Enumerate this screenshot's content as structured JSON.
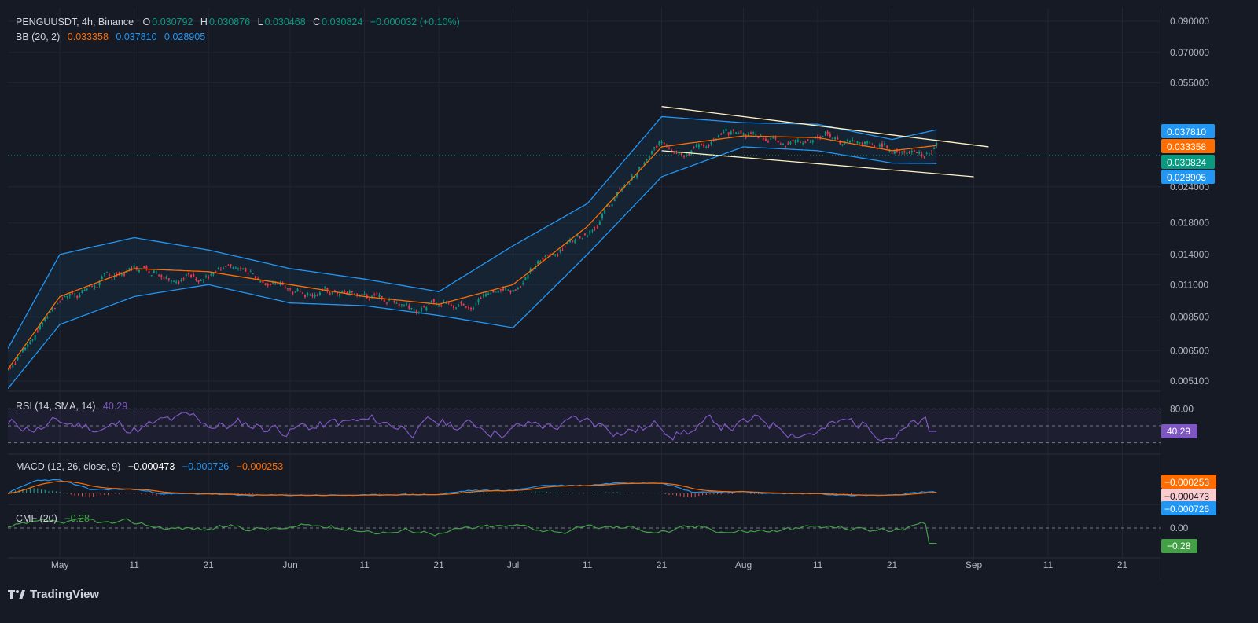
{
  "header": {
    "symbol_line": "PENGUUSDT, 4h, Binance",
    "o_label": "O",
    "o_value": "0.030792",
    "h_label": "H",
    "h_value": "0.030876",
    "l_label": "L",
    "l_value": "0.030468",
    "c_label": "C",
    "c_value": "0.030824",
    "change": "+0.000032 (+0.10%)"
  },
  "bb_legend": {
    "label": "BB (20, 2)",
    "basis": "0.033358",
    "upper": "0.037810",
    "lower": "0.028905"
  },
  "rsi_legend": {
    "label": "RSI (14, SMA, 14)",
    "value": "40.29"
  },
  "macd_legend": {
    "label": "MACD (12, 26, close, 9)",
    "hist": "−0.000473",
    "macd": "−0.000726",
    "signal": "−0.000253"
  },
  "cmf_legend": {
    "label": "CMF (20)",
    "value": "−0.28"
  },
  "price_axis_ticks": [
    "0.090000",
    "0.070000",
    "0.055000",
    "0.024000",
    "0.018000",
    "0.014000",
    "0.011000",
    "0.008500",
    "0.006500",
    "0.005100"
  ],
  "price_tags": [
    {
      "text": "0.037810",
      "color": "#2196f3"
    },
    {
      "text": "0.033358",
      "color": "#ff6d00"
    },
    {
      "text": "0.030824",
      "color": "#089981"
    },
    {
      "text": "0.028905",
      "color": "#2196f3"
    }
  ],
  "rsi_axis": {
    "tick": "80.00",
    "tag": "40.29"
  },
  "macd_axis": {
    "tag1": "−0.000253",
    "tag2": "−0.000473",
    "tag3": "−0.000726"
  },
  "cmf_axis": {
    "tick": "0.00",
    "tag": "−0.28"
  },
  "x_ticks": [
    "May",
    "11",
    "21",
    "Jun",
    "11",
    "21",
    "Jul",
    "11",
    "21",
    "Aug",
    "11",
    "21",
    "Sep",
    "11",
    "21"
  ],
  "footer": {
    "brand": "TradingView"
  },
  "colors": {
    "bg": "#161a25",
    "up": "#089981",
    "down": "#f23645",
    "bb_band": "#2196f3",
    "bb_basis": "#ff6d00",
    "rsi": "#7e57c2",
    "macd": "#2196f3",
    "signal": "#ff6d00",
    "cmf": "#43a047",
    "channel": "#fff3c4"
  },
  "chart_data": {
    "type": "line",
    "title": "PENGUUSDT, 4h, Binance",
    "yscale": "log",
    "ylim": [
      0.0047,
      0.1
    ],
    "x": [
      "2025-04-24",
      "2025-05-01",
      "2025-05-11",
      "2025-05-21",
      "2025-06-01",
      "2025-06-11",
      "2025-06-21",
      "2025-07-01",
      "2025-07-11",
      "2025-07-21",
      "2025-08-01",
      "2025-08-11",
      "2025-08-21",
      "2025-08-27"
    ],
    "series": [
      {
        "name": "BB basis",
        "values": [
          0.0056,
          0.01,
          0.0125,
          0.0122,
          0.011,
          0.01,
          0.0094,
          0.011,
          0.0175,
          0.033,
          0.036,
          0.0355,
          0.032,
          0.033358
        ]
      },
      {
        "name": "BB upper",
        "values": [
          0.0066,
          0.014,
          0.016,
          0.0145,
          0.0125,
          0.0115,
          0.0104,
          0.015,
          0.021,
          0.042,
          0.04,
          0.0395,
          0.035,
          0.03781
        ]
      },
      {
        "name": "BB lower",
        "values": [
          0.0048,
          0.008,
          0.01,
          0.011,
          0.0095,
          0.0093,
          0.0086,
          0.0078,
          0.014,
          0.026,
          0.033,
          0.032,
          0.029,
          0.028905
        ]
      }
    ],
    "channel": {
      "upper": [
        [
          "2025-07-21",
          0.0455
        ],
        [
          "2025-09-03",
          0.033
        ]
      ],
      "lower": [
        [
          "2025-07-21",
          0.032
        ],
        [
          "2025-09-01",
          0.026
        ]
      ]
    },
    "current_price": 0.030824,
    "indicators": {
      "rsi": 40.29,
      "macd": -0.000726,
      "signal": -0.000253,
      "hist": -0.000473,
      "cmf": -0.28
    },
    "grid": true
  }
}
